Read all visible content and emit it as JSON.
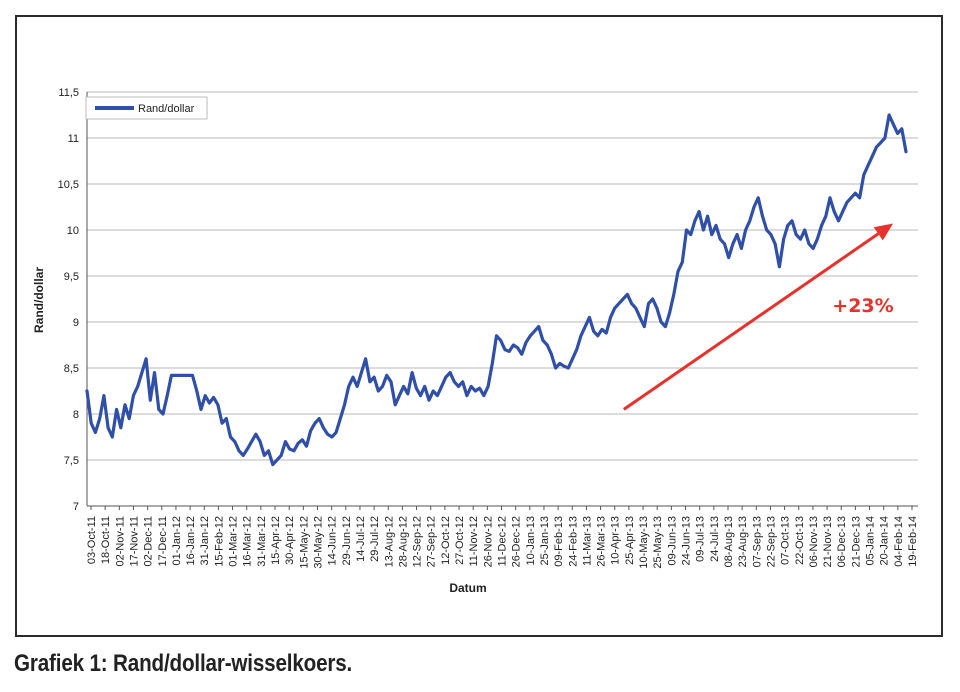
{
  "caption": "Grafiek 1: Rand/dollar-wisselkoers.",
  "chart_data": {
    "type": "line",
    "title": "",
    "xlabel": "Datum",
    "ylabel": "Rand/dollar",
    "ylim": [
      7,
      11.5
    ],
    "y_ticks": [
      "7",
      "7,5",
      "8",
      "8,5",
      "9",
      "9,5",
      "10",
      "10,5",
      "11",
      "11,5"
    ],
    "grid": true,
    "legend_position": "top-left",
    "x_tick_labels": [
      "03-Oct-11",
      "18-Oct-11",
      "02-Nov-11",
      "17-Nov-11",
      "02-Dec-11",
      "17-Dec-11",
      "01-Jan-12",
      "16-Jan-12",
      "31-Jan-12",
      "15-Feb-12",
      "01-Mar-12",
      "16-Mar-12",
      "31-Mar-12",
      "15-Apr-12",
      "30-Apr-12",
      "15-May-12",
      "30-May-12",
      "14-Jun-12",
      "29-Jun-12",
      "14-Jul-12",
      "29-Jul-12",
      "13-Aug-12",
      "28-Aug-12",
      "12-Sep-12",
      "27-Sep-12",
      "12-Oct-12",
      "27-Oct-12",
      "11-Nov-12",
      "26-Nov-12",
      "11-Dec-12",
      "26-Dec-12",
      "10-Jan-13",
      "25-Jan-13",
      "09-Feb-13",
      "24-Feb-13",
      "11-Mar-13",
      "26-Mar-13",
      "10-Apr-13",
      "25-Apr-13",
      "10-May-13",
      "25-May-13",
      "09-Jun-13",
      "24-Jun-13",
      "09-Jul-13",
      "24-Jul-13",
      "08-Aug-13",
      "23-Aug-13",
      "07-Sep-13",
      "22-Sep-13",
      "07-Oct-13",
      "22-Oct-13",
      "06-Nov-13",
      "21-Nov-13",
      "06-Dec-13",
      "21-Dec-13",
      "05-Jan-14",
      "20-Jan-14",
      "04-Feb-14",
      "19-Feb-14"
    ],
    "series": [
      {
        "name": "Rand/dollar",
        "color": "#2f4fa8",
        "points": [
          [
            0,
            8.25
          ],
          [
            1,
            7.9
          ],
          [
            2,
            7.8
          ],
          [
            3,
            7.95
          ],
          [
            4,
            8.2
          ],
          [
            5,
            7.85
          ],
          [
            6,
            7.75
          ],
          [
            7,
            8.05
          ],
          [
            8,
            7.85
          ],
          [
            9,
            8.1
          ],
          [
            10,
            7.95
          ],
          [
            11,
            8.2
          ],
          [
            12,
            8.3
          ],
          [
            13,
            8.45
          ],
          [
            14,
            8.6
          ],
          [
            15,
            8.15
          ],
          [
            16,
            8.45
          ],
          [
            17,
            8.05
          ],
          [
            18,
            8.0
          ],
          [
            19,
            8.2
          ],
          [
            20,
            8.42
          ],
          [
            21,
            8.42
          ],
          [
            22,
            8.42
          ],
          [
            23,
            8.42
          ],
          [
            24,
            8.42
          ],
          [
            25,
            8.42
          ],
          [
            26,
            8.25
          ],
          [
            27,
            8.05
          ],
          [
            28,
            8.2
          ],
          [
            29,
            8.12
          ],
          [
            30,
            8.18
          ],
          [
            31,
            8.1
          ],
          [
            32,
            7.9
          ],
          [
            33,
            7.95
          ],
          [
            34,
            7.75
          ],
          [
            35,
            7.7
          ],
          [
            36,
            7.6
          ],
          [
            37,
            7.55
          ],
          [
            38,
            7.62
          ],
          [
            39,
            7.7
          ],
          [
            40,
            7.78
          ],
          [
            41,
            7.7
          ],
          [
            42,
            7.55
          ],
          [
            43,
            7.6
          ],
          [
            44,
            7.45
          ],
          [
            45,
            7.5
          ],
          [
            46,
            7.55
          ],
          [
            47,
            7.7
          ],
          [
            48,
            7.62
          ],
          [
            49,
            7.6
          ],
          [
            50,
            7.68
          ],
          [
            51,
            7.72
          ],
          [
            52,
            7.65
          ],
          [
            53,
            7.82
          ],
          [
            54,
            7.9
          ],
          [
            55,
            7.95
          ],
          [
            56,
            7.85
          ],
          [
            57,
            7.78
          ],
          [
            58,
            7.75
          ],
          [
            59,
            7.8
          ],
          [
            60,
            7.95
          ],
          [
            61,
            8.1
          ],
          [
            62,
            8.3
          ],
          [
            63,
            8.4
          ],
          [
            64,
            8.3
          ],
          [
            65,
            8.45
          ],
          [
            66,
            8.6
          ],
          [
            67,
            8.35
          ],
          [
            68,
            8.4
          ],
          [
            69,
            8.25
          ],
          [
            70,
            8.3
          ],
          [
            71,
            8.42
          ],
          [
            72,
            8.35
          ],
          [
            73,
            8.1
          ],
          [
            74,
            8.2
          ],
          [
            75,
            8.3
          ],
          [
            76,
            8.22
          ],
          [
            77,
            8.45
          ],
          [
            78,
            8.28
          ],
          [
            79,
            8.2
          ],
          [
            80,
            8.3
          ],
          [
            81,
            8.15
          ],
          [
            82,
            8.25
          ],
          [
            83,
            8.2
          ],
          [
            84,
            8.3
          ],
          [
            85,
            8.4
          ],
          [
            86,
            8.45
          ],
          [
            87,
            8.35
          ],
          [
            88,
            8.3
          ],
          [
            89,
            8.35
          ],
          [
            90,
            8.2
          ],
          [
            91,
            8.3
          ],
          [
            92,
            8.25
          ],
          [
            93,
            8.28
          ],
          [
            94,
            8.2
          ],
          [
            95,
            8.3
          ],
          [
            96,
            8.55
          ],
          [
            97,
            8.85
          ],
          [
            98,
            8.8
          ],
          [
            99,
            8.7
          ],
          [
            100,
            8.68
          ],
          [
            101,
            8.75
          ],
          [
            102,
            8.72
          ],
          [
            103,
            8.65
          ],
          [
            104,
            8.78
          ],
          [
            105,
            8.85
          ],
          [
            106,
            8.9
          ],
          [
            107,
            8.95
          ],
          [
            108,
            8.8
          ],
          [
            109,
            8.75
          ],
          [
            110,
            8.65
          ],
          [
            111,
            8.5
          ],
          [
            112,
            8.55
          ],
          [
            113,
            8.52
          ],
          [
            114,
            8.5
          ],
          [
            115,
            8.6
          ],
          [
            116,
            8.7
          ],
          [
            117,
            8.85
          ],
          [
            118,
            8.95
          ],
          [
            119,
            9.05
          ],
          [
            120,
            8.9
          ],
          [
            121,
            8.85
          ],
          [
            122,
            8.92
          ],
          [
            123,
            8.88
          ],
          [
            124,
            9.05
          ],
          [
            125,
            9.15
          ],
          [
            126,
            9.2
          ],
          [
            127,
            9.25
          ],
          [
            128,
            9.3
          ],
          [
            129,
            9.2
          ],
          [
            130,
            9.15
          ],
          [
            131,
            9.05
          ],
          [
            132,
            8.95
          ],
          [
            133,
            9.2
          ],
          [
            134,
            9.25
          ],
          [
            135,
            9.15
          ],
          [
            136,
            9.0
          ],
          [
            137,
            8.95
          ],
          [
            138,
            9.1
          ],
          [
            139,
            9.3
          ],
          [
            140,
            9.55
          ],
          [
            141,
            9.65
          ],
          [
            142,
            10.0
          ],
          [
            143,
            9.95
          ],
          [
            144,
            10.1
          ],
          [
            145,
            10.2
          ],
          [
            146,
            10.0
          ],
          [
            147,
            10.15
          ],
          [
            148,
            9.95
          ],
          [
            149,
            10.05
          ],
          [
            150,
            9.9
          ],
          [
            151,
            9.85
          ],
          [
            152,
            9.7
          ],
          [
            153,
            9.85
          ],
          [
            154,
            9.95
          ],
          [
            155,
            9.8
          ],
          [
            156,
            10.0
          ],
          [
            157,
            10.1
          ],
          [
            158,
            10.25
          ],
          [
            159,
            10.35
          ],
          [
            160,
            10.15
          ],
          [
            161,
            10.0
          ],
          [
            162,
            9.95
          ],
          [
            163,
            9.85
          ],
          [
            164,
            9.6
          ],
          [
            165,
            9.9
          ],
          [
            166,
            10.05
          ],
          [
            167,
            10.1
          ],
          [
            168,
            9.95
          ],
          [
            169,
            9.9
          ],
          [
            170,
            10.0
          ],
          [
            171,
            9.85
          ],
          [
            172,
            9.8
          ],
          [
            173,
            9.9
          ],
          [
            174,
            10.05
          ],
          [
            175,
            10.15
          ],
          [
            176,
            10.35
          ],
          [
            177,
            10.2
          ],
          [
            178,
            10.1
          ],
          [
            179,
            10.2
          ],
          [
            180,
            10.3
          ],
          [
            181,
            10.35
          ],
          [
            182,
            10.4
          ],
          [
            183,
            10.35
          ],
          [
            184,
            10.6
          ],
          [
            185,
            10.7
          ],
          [
            186,
            10.8
          ],
          [
            187,
            10.9
          ],
          [
            188,
            10.95
          ],
          [
            189,
            11.0
          ],
          [
            190,
            11.25
          ],
          [
            191,
            11.15
          ],
          [
            192,
            11.05
          ],
          [
            193,
            11.1
          ],
          [
            194,
            10.85
          ]
        ]
      }
    ],
    "annotation": {
      "text": "+23%",
      "color": "#e8312a",
      "arrow_from": [
        0.646,
        8.05
      ],
      "arrow_to": [
        0.97,
        10.07
      ]
    }
  }
}
